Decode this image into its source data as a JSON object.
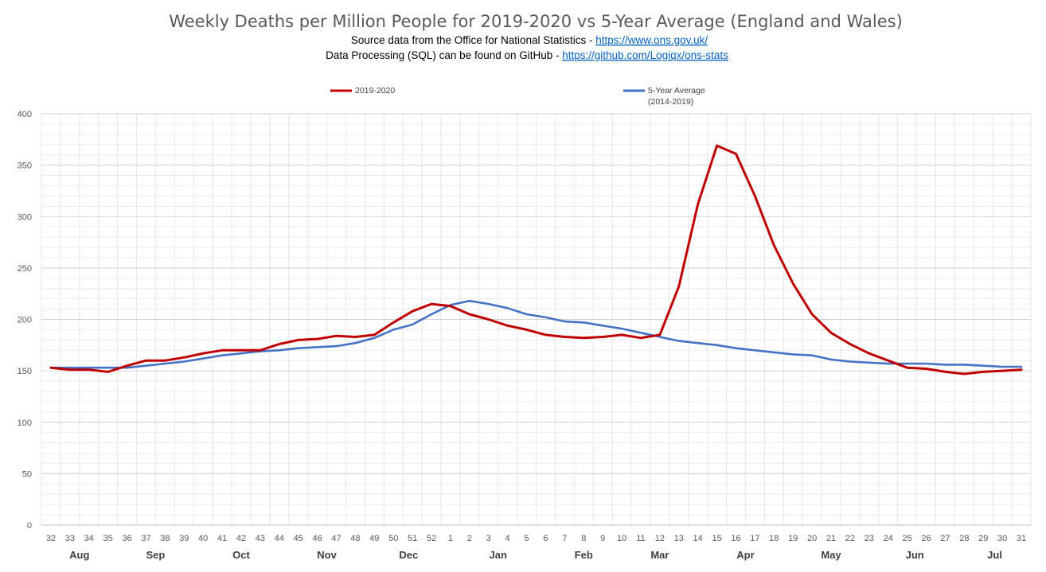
{
  "chart_data": {
    "type": "line",
    "title": "Weekly Deaths per Million People for 2019-2020 vs 5-Year Average (England and Wales)",
    "subtitle_lines": [
      {
        "prefix": "Source data from the Office for National Statistics - ",
        "link": "https://www.ons.gov.uk/"
      },
      {
        "prefix": "Data Processing (SQL) can be found on GitHub - ",
        "link": "https://github.com/Logiqx/ons-stats"
      }
    ],
    "x": [
      "32",
      "33",
      "34",
      "35",
      "36",
      "37",
      "38",
      "39",
      "40",
      "41",
      "42",
      "43",
      "44",
      "45",
      "46",
      "47",
      "48",
      "49",
      "50",
      "51",
      "52",
      "1",
      "2",
      "3",
      "4",
      "5",
      "6",
      "7",
      "8",
      "9",
      "10",
      "11",
      "12",
      "13",
      "14",
      "15",
      "16",
      "17",
      "18",
      "19",
      "20",
      "21",
      "22",
      "23",
      "24",
      "25",
      "26",
      "27",
      "28",
      "29",
      "30",
      "31"
    ],
    "months": [
      {
        "label": "Aug",
        "center_week_index": 1.5
      },
      {
        "label": "Sep",
        "center_week_index": 5.5
      },
      {
        "label": "Oct",
        "center_week_index": 10
      },
      {
        "label": "Nov",
        "center_week_index": 14.5
      },
      {
        "label": "Dec",
        "center_week_index": 18.8
      },
      {
        "label": "Jan",
        "center_week_index": 23.5
      },
      {
        "label": "Feb",
        "center_week_index": 28
      },
      {
        "label": "Mar",
        "center_week_index": 32
      },
      {
        "label": "Apr",
        "center_week_index": 36.5
      },
      {
        "label": "May",
        "center_week_index": 41
      },
      {
        "label": "Jun",
        "center_week_index": 45.4
      },
      {
        "label": "Jul",
        "center_week_index": 49.6
      }
    ],
    "series": [
      {
        "name": "2019-2020",
        "color": "#c00000",
        "values": [
          153,
          151,
          151,
          149,
          155,
          160,
          160,
          163,
          167,
          170,
          170,
          170,
          176,
          180,
          181,
          184,
          183,
          185,
          197,
          208,
          215,
          213,
          205,
          200,
          194,
          190,
          185,
          183,
          182,
          183,
          185,
          182,
          185,
          232,
          312,
          369,
          361,
          320,
          272,
          235,
          205,
          187,
          176,
          167,
          160,
          153,
          152,
          149,
          147,
          149,
          150,
          151
        ]
      },
      {
        "name": "5-Year Average",
        "name_line2": "(2014-2019)",
        "color": "#4472c4",
        "values": [
          153,
          153,
          153,
          153,
          153,
          155,
          157,
          159,
          162,
          165,
          167,
          169,
          170,
          172,
          173,
          174,
          177,
          182,
          190,
          195,
          205,
          214,
          218,
          215,
          211,
          205,
          202,
          198,
          197,
          194,
          191,
          187,
          183,
          179,
          177,
          175,
          172,
          170,
          168,
          166,
          165,
          161,
          159,
          158,
          157,
          157,
          157,
          156,
          156,
          155,
          154,
          154
        ]
      }
    ],
    "ylim": [
      0,
      400
    ],
    "yticks": [
      0,
      50,
      100,
      150,
      200,
      250,
      300,
      350,
      400
    ],
    "grid": true,
    "legend_position": "top"
  }
}
